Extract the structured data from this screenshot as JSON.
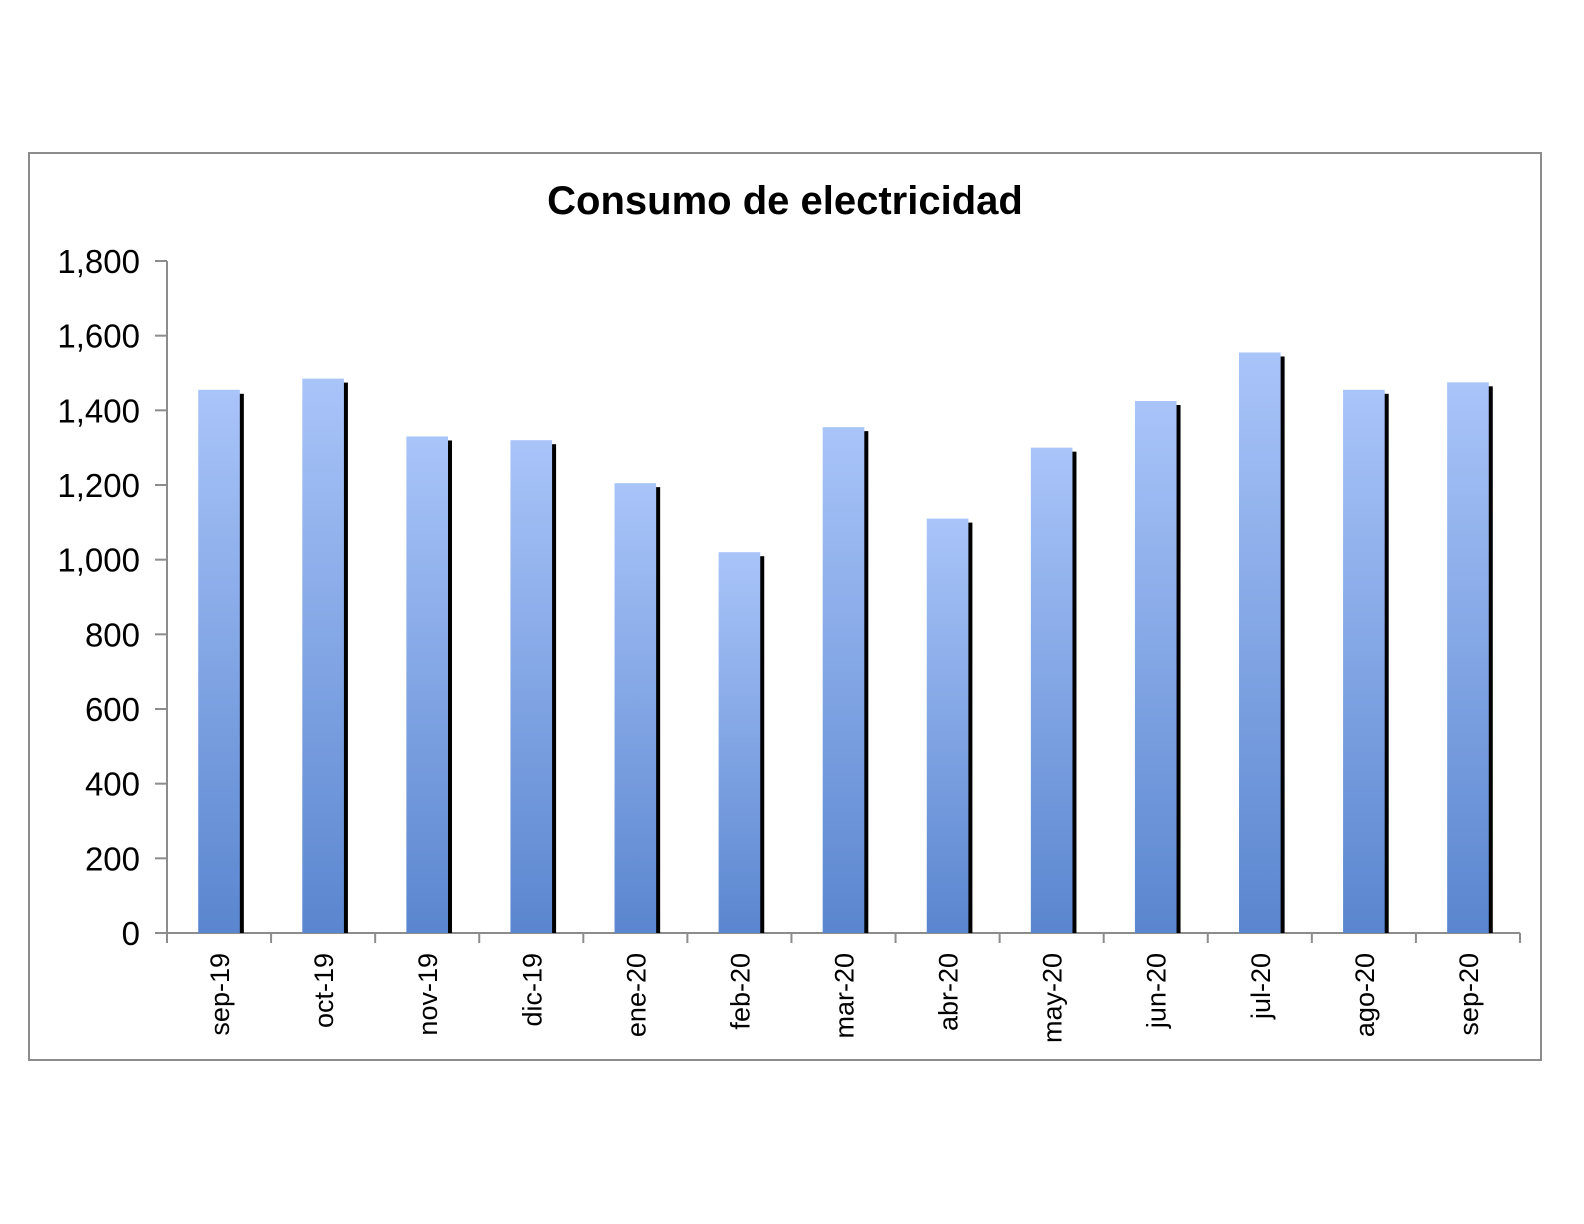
{
  "chart_data": {
    "type": "bar",
    "title": "Consumo de electricidad",
    "xlabel": "",
    "ylabel": "",
    "ylim": [
      0,
      1800
    ],
    "yticks": [
      0,
      200,
      400,
      600,
      800,
      1000,
      1200,
      1400,
      1600,
      1800
    ],
    "ytick_labels": [
      "0",
      "200",
      "400",
      "600",
      "800",
      "1,000",
      "1,200",
      "1,400",
      "1,600",
      "1,800"
    ],
    "categories": [
      "sep-19",
      "oct-19",
      "nov-19",
      "dic-19",
      "ene-20",
      "feb-20",
      "mar-20",
      "abr-20",
      "may-20",
      "jun-20",
      "jul-20",
      "ago-20",
      "sep-20"
    ],
    "values": [
      1455,
      1485,
      1330,
      1320,
      1205,
      1020,
      1355,
      1110,
      1300,
      1425,
      1555,
      1455,
      1475
    ],
    "grid": false,
    "legend": "none",
    "colors": {
      "bar_top": "#a9c4f9",
      "bar_bottom": "#5a86cf",
      "bar_shadow": "#000000",
      "axis": "#8c8c8c"
    }
  }
}
